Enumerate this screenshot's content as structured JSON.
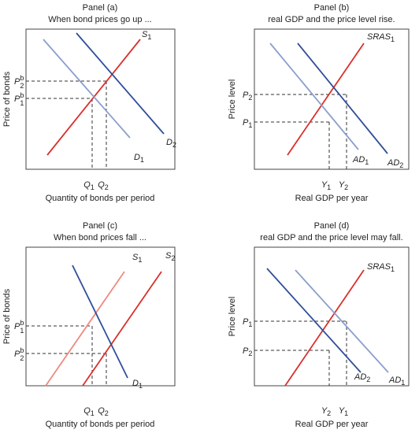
{
  "panels": [
    {
      "title": "Panel (a)",
      "subtitle": "When bond prices go up ...",
      "y_label": "Price of bonds",
      "x_label": "Quantity of bonds per period",
      "curves": [
        {
          "text": "S",
          "sub": "1"
        },
        {
          "text": "D",
          "sub": "2"
        },
        {
          "text": "D",
          "sub": "1"
        }
      ],
      "y_ticks": [
        {
          "text": "P",
          "sup": "b",
          "sub": "2"
        },
        {
          "text": "P",
          "sup": "b",
          "sub": "1"
        }
      ],
      "x_ticks": [
        {
          "text": "Q",
          "sub": "1"
        },
        {
          "text": "Q",
          "sub": "2"
        }
      ]
    },
    {
      "title": "Panel (b)",
      "subtitle": "real GDP and the price level rise.",
      "y_label": "Price level",
      "x_label": "Real GDP per year",
      "curves": [
        {
          "text": "SRAS",
          "sub": "1"
        },
        {
          "text": "AD",
          "sub": "1"
        },
        {
          "text": "AD",
          "sub": "2"
        }
      ],
      "y_ticks": [
        {
          "text": "P",
          "sub": "2"
        },
        {
          "text": "P",
          "sub": "1"
        }
      ],
      "x_ticks": [
        {
          "text": "Y",
          "sub": "1"
        },
        {
          "text": "Y",
          "sub": "2"
        }
      ]
    },
    {
      "title": "Panel (c)",
      "subtitle": "When bond prices fall ...",
      "y_label": "Price of bonds",
      "x_label": "Quantity of bonds per period",
      "curves": [
        {
          "text": "S",
          "sub": "1"
        },
        {
          "text": "S",
          "sub": "2"
        },
        {
          "text": "D",
          "sub": "1"
        }
      ],
      "y_ticks": [
        {
          "text": "P",
          "sup": "b",
          "sub": "1"
        },
        {
          "text": "P",
          "sup": "b",
          "sub": "2"
        }
      ],
      "x_ticks": [
        {
          "text": "Q",
          "sub": "1"
        },
        {
          "text": "Q",
          "sub": "2"
        }
      ]
    },
    {
      "title": "Panel (d)",
      "subtitle": "real GDP and the price level may fall.",
      "y_label": "Price level",
      "x_label": "Real GDP per year",
      "curves": [
        {
          "text": "SRAS",
          "sub": "1"
        },
        {
          "text": "AD",
          "sub": "2"
        },
        {
          "text": "AD",
          "sub": "1"
        }
      ],
      "y_ticks": [
        {
          "text": "P",
          "sub": "1"
        },
        {
          "text": "P",
          "sub": "2"
        }
      ],
      "x_ticks": [
        {
          "text": "Y",
          "sub": "2"
        },
        {
          "text": "Y",
          "sub": "1"
        }
      ]
    }
  ]
}
